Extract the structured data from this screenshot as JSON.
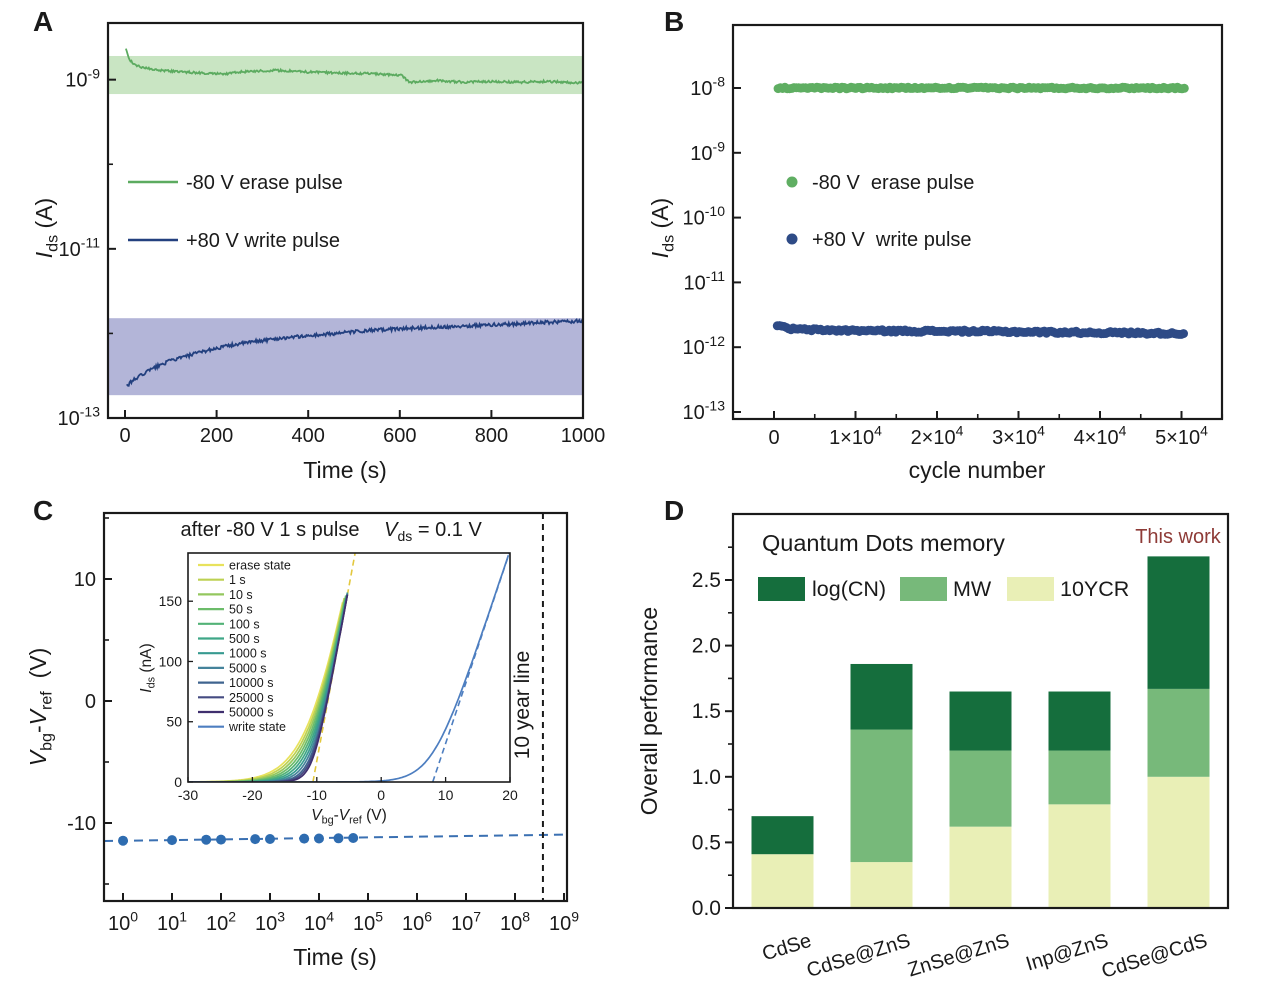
{
  "figure": {
    "background": "#ffffff",
    "panels": [
      {
        "label": "A"
      },
      {
        "label": "B"
      },
      {
        "label": "C"
      },
      {
        "label": "D"
      }
    ]
  },
  "chart_data": [
    {
      "id": "A",
      "type": "line",
      "xlabel": "Time (s)",
      "ylabel_rich": [
        {
          "t": "I",
          "i": true
        },
        {
          "t": "ds",
          "sub": true
        },
        {
          "t": " (A)"
        }
      ],
      "x_ticks": [
        0,
        200,
        400,
        600,
        800,
        1000
      ],
      "x_range": [
        -37,
        1000
      ],
      "ylim_log10": [
        -13,
        -8.33
      ],
      "y_major_exps": [
        "-9",
        "-11",
        "-13"
      ],
      "y_minor_exps": [
        -10,
        -12
      ],
      "bands": [
        {
          "name": "erase-state-band",
          "color": "#c9e5c3",
          "log_top": -8.72,
          "log_bottom": -9.17
        },
        {
          "name": "write-state-band",
          "color": "#b3b5d8",
          "log_top": -11.82,
          "log_bottom": -12.73
        }
      ],
      "legend": [
        {
          "label": "-80 V erase pulse",
          "color": "#5cab60"
        },
        {
          "label": "+80 V write pulse",
          "color": "#23407f"
        }
      ],
      "series": [
        {
          "name": "erase-retention",
          "color": "#5cab60",
          "noise": 0.013,
          "anchors_t_log10": [
            [
              2,
              -8.62
            ],
            [
              5,
              -8.7
            ],
            [
              10,
              -8.76
            ],
            [
              20,
              -8.82
            ],
            [
              35,
              -8.85
            ],
            [
              60,
              -8.88
            ],
            [
              100,
              -8.9
            ],
            [
              160,
              -8.92
            ],
            [
              220,
              -8.93
            ],
            [
              270,
              -8.9
            ],
            [
              330,
              -8.89
            ],
            [
              400,
              -8.91
            ],
            [
              470,
              -8.92
            ],
            [
              540,
              -8.93
            ],
            [
              605,
              -8.95
            ],
            [
              620,
              -9.03
            ],
            [
              680,
              -9.01
            ],
            [
              740,
              -9.03
            ],
            [
              800,
              -9.02
            ],
            [
              860,
              -9.03
            ],
            [
              920,
              -9.02
            ],
            [
              1000,
              -9.04
            ]
          ]
        },
        {
          "name": "write-retention",
          "color": "#23407f",
          "noise": 0.02,
          "anchors_t_log10": [
            [
              4,
              -12.62
            ],
            [
              12,
              -12.58
            ],
            [
              25,
              -12.53
            ],
            [
              45,
              -12.46
            ],
            [
              70,
              -12.39
            ],
            [
              100,
              -12.32
            ],
            [
              140,
              -12.26
            ],
            [
              180,
              -12.2
            ],
            [
              230,
              -12.14
            ],
            [
              290,
              -12.09
            ],
            [
              350,
              -12.05
            ],
            [
              420,
              -12.02
            ],
            [
              500,
              -11.98
            ],
            [
              580,
              -11.95
            ],
            [
              660,
              -11.93
            ],
            [
              750,
              -11.91
            ],
            [
              840,
              -11.89
            ],
            [
              920,
              -11.87
            ],
            [
              1000,
              -11.85
            ]
          ]
        }
      ]
    },
    {
      "id": "B",
      "type": "scatter",
      "xlabel": "cycle number",
      "ylabel_rich": [
        {
          "t": "I",
          "i": true
        },
        {
          "t": "ds",
          "sub": true
        },
        {
          "t": " (A)"
        }
      ],
      "x_ticks": [
        {
          "v": 0,
          "pre": "0",
          "exp": ""
        },
        {
          "v": 10000,
          "pre": "1×10",
          "exp": "4"
        },
        {
          "v": 20000,
          "pre": "2×10",
          "exp": "4"
        },
        {
          "v": 30000,
          "pre": "3×10",
          "exp": "4"
        },
        {
          "v": 40000,
          "pre": "4×10",
          "exp": "4"
        },
        {
          "v": 50000,
          "pre": "5×10",
          "exp": "4"
        }
      ],
      "x_minor_values": [
        -5000,
        5000,
        15000,
        25000,
        35000,
        45000,
        55000
      ],
      "x_range": [
        -5030,
        55030
      ],
      "ylim_log10": [
        -13.1,
        -7.03
      ],
      "y_major_exps": [
        "-8",
        "-9",
        "-10",
        "-11",
        "-12",
        "-13"
      ],
      "legend": [
        {
          "label": "-80 V  erase pulse",
          "color": "#5fae62"
        },
        {
          "label": "+80 V  write pulse",
          "color": "#2e4b86"
        }
      ],
      "series": [
        {
          "name": "erase-endurance",
          "color": "#5fae62",
          "noise": 0.013,
          "dot_r": 4.5,
          "step": 280,
          "anchors": [
            [
              500,
              -8.0
            ],
            [
              50500,
              -8.0
            ]
          ]
        },
        {
          "name": "write-endurance",
          "color": "#2e4b86",
          "noise": 0.018,
          "dot_r": 4.5,
          "step": 280,
          "anchors": [
            [
              400,
              -11.66
            ],
            [
              1000,
              -11.69
            ],
            [
              2000,
              -11.715
            ],
            [
              4000,
              -11.73
            ],
            [
              8000,
              -11.74
            ],
            [
              15000,
              -11.75
            ],
            [
              25000,
              -11.755
            ],
            [
              35000,
              -11.77
            ],
            [
              45000,
              -11.78
            ],
            [
              50500,
              -11.79
            ]
          ]
        }
      ]
    },
    {
      "id": "C",
      "type": "scatter",
      "xlabel": "Time (s)",
      "ylabel_rich": [
        {
          "t": "V",
          "i": true
        },
        {
          "t": "bg",
          "sub": true
        },
        {
          "t": "-"
        },
        {
          "t": "V",
          "i": true
        },
        {
          "t": "ref",
          "sub": true
        },
        {
          "t": "  (V)"
        }
      ],
      "x_tick_exps": [
        "0",
        "1",
        "2",
        "3",
        "4",
        "5",
        "6",
        "7",
        "8",
        "9"
      ],
      "xlim_log10": [
        -0.39,
        9.06
      ],
      "y_ticks": [
        10,
        0,
        -10
      ],
      "y_minor_ticks": [
        15,
        5,
        -5,
        -15
      ],
      "ylim": [
        -16.4,
        15.4
      ],
      "points": {
        "name": "threshold-shift-points",
        "color": "#2e6cb0",
        "t": [
          1,
          10,
          50,
          100,
          500,
          1000,
          5000,
          10000,
          25000,
          50000
        ],
        "v": [
          -11.45,
          -11.4,
          -11.37,
          -11.36,
          -11.32,
          -11.31,
          -11.28,
          -11.27,
          -11.25,
          -11.23
        ]
      },
      "trend": {
        "name": "extrapolation-line",
        "color": "#3a70b2",
        "v_left": -11.48,
        "v_right": -10.95
      },
      "ten_year_line": {
        "x_log10": 8.57,
        "label": "10 year line"
      },
      "annotations": [
        {
          "segs": [
            {
              "t": "after -80 V 1 s pulse"
            }
          ],
          "x": 270
        },
        {
          "segs": [
            {
              "t": "V",
              "i": true
            },
            {
              "t": "ds",
              "sub": true
            },
            {
              "t": " = 0.1 V"
            }
          ],
          "x": 433
        }
      ],
      "inset": {
        "xlabel_rich": [
          {
            "t": "V",
            "i": true
          },
          {
            "t": "bg",
            "sub": true
          },
          {
            "t": "-"
          },
          {
            "t": "V",
            "i": true
          },
          {
            "t": "ref",
            "sub": true
          },
          {
            "t": " (V)"
          }
        ],
        "ylabel_rich": [
          {
            "t": "I",
            "i": true
          },
          {
            "t": "ds",
            "sub": true
          },
          {
            "t": " (nA)"
          }
        ],
        "x_ticks": [
          -30,
          -20,
          -10,
          0,
          10,
          20
        ],
        "xlim": [
          -30,
          20
        ],
        "y_ticks": [
          0,
          50,
          100,
          150
        ],
        "ylim": [
          0,
          190
        ],
        "family_slope_nA_per_V": 29,
        "write_slope_nA_per_V": 16,
        "curves": [
          {
            "label": "erase state",
            "color": "#e8e25c",
            "vt": -10.6,
            "w": 2.9
          },
          {
            "label": "1 s",
            "color": "#bdd152",
            "vt": -10.6,
            "w": 2.7
          },
          {
            "label": "10 s",
            "color": "#94c75e",
            "vt": -10.6,
            "w": 2.5
          },
          {
            "label": "50 s",
            "color": "#6cbc6a",
            "vt": -10.6,
            "w": 2.3
          },
          {
            "label": "100 s",
            "color": "#52b277",
            "vt": -10.6,
            "w": 2.1
          },
          {
            "label": "500 s",
            "color": "#3fa687",
            "vt": -10.6,
            "w": 1.9
          },
          {
            "label": "1000 s",
            "color": "#379a90",
            "vt": -10.6,
            "w": 1.7
          },
          {
            "label": "5000 s",
            "color": "#45839b",
            "vt": -10.6,
            "w": 1.5
          },
          {
            "label": "10000 s",
            "color": "#3f648f",
            "vt": -10.6,
            "w": 1.3
          },
          {
            "label": "25000 s",
            "color": "#454b82",
            "vt": -10.6,
            "w": 1.15
          },
          {
            "label": "50000 s",
            "color": "#3f2f6e",
            "vt": -10.6,
            "w": 1.0
          },
          {
            "label": "write state",
            "color": "#4d7ec0",
            "vt": 8.0,
            "w": 2.2
          }
        ],
        "guides": [
          {
            "name": "erase-tangent-guide",
            "color": "#e3c83e",
            "x1": -10.6,
            "y1": 0,
            "x2": -4.05,
            "y2": 190
          },
          {
            "name": "write-tangent-guide",
            "color": "#4d7ec0",
            "x1": 8.0,
            "y1": 0,
            "x2": 19.9,
            "y2": 190
          }
        ]
      }
    },
    {
      "id": "D",
      "type": "bar",
      "title": "Quantum Dots memory",
      "annotation": {
        "text": "This work",
        "color": "#8e3b37"
      },
      "ylabel": "Overall performance",
      "ylim": [
        0,
        3.0
      ],
      "y_ticks": [
        0.0,
        0.5,
        1.0,
        1.5,
        2.0,
        2.5
      ],
      "y_minor_step": 0.25,
      "categories": [
        "CdSe",
        "CdSe@ZnS",
        "ZnSe@ZnS",
        "Inp@ZnS",
        "CdSe@CdS"
      ],
      "series": [
        {
          "name": "10YCR",
          "color": "#e9efb6",
          "values": [
            0.41,
            0.35,
            0.62,
            0.79,
            1.0
          ]
        },
        {
          "name": "MW",
          "color": "#77b97a",
          "values": [
            0.0,
            1.01,
            0.58,
            0.41,
            0.67
          ]
        },
        {
          "name": "log(CN)",
          "color": "#156e3d",
          "values": [
            0.29,
            0.5,
            0.45,
            0.45,
            1.01
          ]
        }
      ],
      "legend": [
        {
          "label": "log(CN)",
          "color": "#156e3d"
        },
        {
          "label": "MW",
          "color": "#77b97a"
        },
        {
          "label": "10YCR",
          "color": "#e9efb6"
        }
      ]
    }
  ]
}
